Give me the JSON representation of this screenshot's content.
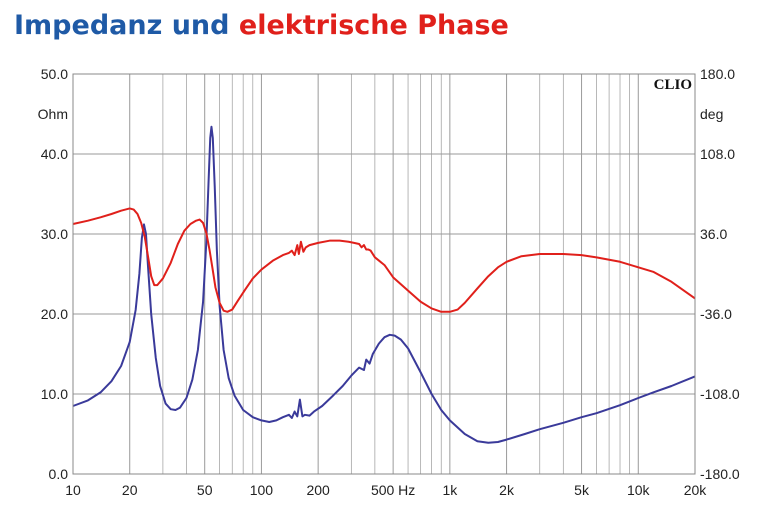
{
  "title": {
    "part1": "Impedanz und",
    "part2": "elektrische Phase"
  },
  "colors": {
    "title_blue": "#1f5aa6",
    "title_red": "#e0201b",
    "impedance": "#3a3a9a",
    "phase": "#e0201b",
    "grid": "#9a9a9a",
    "plot_border": "#888888"
  },
  "chart_data": {
    "type": "line",
    "brand": "CLIO",
    "x_scale": "log",
    "xlim": [
      10,
      20000
    ],
    "x_ticks": [
      {
        "value": 10,
        "label": "10"
      },
      {
        "value": 20,
        "label": "20"
      },
      {
        "value": 50,
        "label": "50"
      },
      {
        "value": 100,
        "label": "100"
      },
      {
        "value": 200,
        "label": "200"
      },
      {
        "value": 500,
        "label": "500 Hz"
      },
      {
        "value": 1000,
        "label": "1k"
      },
      {
        "value": 2000,
        "label": "2k"
      },
      {
        "value": 5000,
        "label": "5k"
      },
      {
        "value": 10000,
        "label": "10k"
      },
      {
        "value": 20000,
        "label": "20k"
      }
    ],
    "y_left": {
      "unit": "Ohm",
      "lim": [
        0,
        50
      ],
      "ticks": [
        {
          "value": 50,
          "label": "50.0"
        },
        {
          "value": 40,
          "label": "40.0"
        },
        {
          "value": 30,
          "label": "30.0"
        },
        {
          "value": 20,
          "label": "20.0"
        },
        {
          "value": 10,
          "label": "10.0"
        },
        {
          "value": 0,
          "label": "0.0"
        }
      ]
    },
    "y_right": {
      "unit": "deg",
      "lim": [
        -180,
        180
      ],
      "ticks": [
        {
          "value": 180,
          "label": "180.0"
        },
        {
          "value": 108,
          "label": "108.0"
        },
        {
          "value": 36,
          "label": "36.0"
        },
        {
          "value": -36,
          "label": "-36.0"
        },
        {
          "value": -108,
          "label": "-108.0"
        },
        {
          "value": -180,
          "label": "-180.0"
        }
      ]
    },
    "grid": true,
    "series": [
      {
        "axis": "left",
        "color": "#3a3a9a",
        "points": [
          [
            10,
            8.5
          ],
          [
            12,
            9.2
          ],
          [
            14,
            10.2
          ],
          [
            16,
            11.6
          ],
          [
            18,
            13.5
          ],
          [
            20,
            16.5
          ],
          [
            21.5,
            20.5
          ],
          [
            22.5,
            25
          ],
          [
            23.2,
            29.5
          ],
          [
            23.8,
            31.2
          ],
          [
            24.4,
            30
          ],
          [
            25,
            26
          ],
          [
            26,
            20
          ],
          [
            27.5,
            14.5
          ],
          [
            29,
            11
          ],
          [
            31,
            8.8
          ],
          [
            33,
            8.1
          ],
          [
            35,
            8.0
          ],
          [
            37,
            8.3
          ],
          [
            40,
            9.5
          ],
          [
            43,
            11.8
          ],
          [
            46,
            15.5
          ],
          [
            49,
            21.5
          ],
          [
            51,
            29
          ],
          [
            52.5,
            37
          ],
          [
            53.5,
            42
          ],
          [
            54.3,
            43.4
          ],
          [
            55.2,
            42
          ],
          [
            56.5,
            36
          ],
          [
            58,
            28
          ],
          [
            60,
            21
          ],
          [
            63,
            15.5
          ],
          [
            67,
            12
          ],
          [
            72,
            9.8
          ],
          [
            80,
            8.0
          ],
          [
            90,
            7.1
          ],
          [
            100,
            6.7
          ],
          [
            110,
            6.5
          ],
          [
            120,
            6.7
          ],
          [
            130,
            7.1
          ],
          [
            140,
            7.4
          ],
          [
            145,
            7.0
          ],
          [
            150,
            7.8
          ],
          [
            155,
            7.2
          ],
          [
            160,
            9.3
          ],
          [
            165,
            7.2
          ],
          [
            170,
            7.4
          ],
          [
            180,
            7.3
          ],
          [
            190,
            7.8
          ],
          [
            210,
            8.5
          ],
          [
            240,
            9.8
          ],
          [
            270,
            11.0
          ],
          [
            300,
            12.3
          ],
          [
            330,
            13.3
          ],
          [
            350,
            13.0
          ],
          [
            360,
            14.3
          ],
          [
            375,
            13.8
          ],
          [
            390,
            15.0
          ],
          [
            420,
            16.3
          ],
          [
            450,
            17.1
          ],
          [
            480,
            17.4
          ],
          [
            510,
            17.3
          ],
          [
            550,
            16.8
          ],
          [
            600,
            15.7
          ],
          [
            700,
            12.7
          ],
          [
            800,
            10.0
          ],
          [
            900,
            8.0
          ],
          [
            1000,
            6.7
          ],
          [
            1200,
            5.0
          ],
          [
            1400,
            4.1
          ],
          [
            1600,
            3.9
          ],
          [
            1800,
            4.0
          ],
          [
            2000,
            4.3
          ],
          [
            2500,
            5.0
          ],
          [
            3000,
            5.6
          ],
          [
            4000,
            6.4
          ],
          [
            5000,
            7.1
          ],
          [
            6000,
            7.6
          ],
          [
            8000,
            8.6
          ],
          [
            10000,
            9.5
          ],
          [
            12000,
            10.2
          ],
          [
            15000,
            11.0
          ],
          [
            20000,
            12.2
          ]
        ]
      },
      {
        "axis": "right",
        "color": "#e0201b",
        "points": [
          [
            10,
            45
          ],
          [
            12,
            48
          ],
          [
            14,
            51
          ],
          [
            16,
            54
          ],
          [
            18,
            57
          ],
          [
            20,
            59
          ],
          [
            21,
            58
          ],
          [
            22,
            54
          ],
          [
            23,
            46
          ],
          [
            24,
            34
          ],
          [
            25,
            16
          ],
          [
            26,
            -2
          ],
          [
            27,
            -10
          ],
          [
            28,
            -10
          ],
          [
            30,
            -4
          ],
          [
            33,
            10
          ],
          [
            36,
            27
          ],
          [
            39,
            39
          ],
          [
            42,
            45
          ],
          [
            45,
            48
          ],
          [
            47,
            49
          ],
          [
            49,
            46
          ],
          [
            51,
            37
          ],
          [
            53,
            22
          ],
          [
            55,
            5
          ],
          [
            57,
            -12
          ],
          [
            60,
            -26
          ],
          [
            63,
            -33
          ],
          [
            66,
            -34
          ],
          [
            70,
            -32
          ],
          [
            75,
            -24
          ],
          [
            82,
            -14
          ],
          [
            90,
            -4
          ],
          [
            100,
            4
          ],
          [
            115,
            12
          ],
          [
            130,
            17
          ],
          [
            140,
            19
          ],
          [
            145,
            21
          ],
          [
            150,
            17
          ],
          [
            155,
            26
          ],
          [
            158,
            18
          ],
          [
            162,
            29
          ],
          [
            167,
            20
          ],
          [
            172,
            24
          ],
          [
            180,
            26
          ],
          [
            200,
            28
          ],
          [
            230,
            30
          ],
          [
            260,
            30
          ],
          [
            290,
            29
          ],
          [
            310,
            28
          ],
          [
            330,
            27
          ],
          [
            340,
            24
          ],
          [
            350,
            26
          ],
          [
            360,
            22
          ],
          [
            370,
            22
          ],
          [
            380,
            21
          ],
          [
            400,
            15
          ],
          [
            450,
            8
          ],
          [
            500,
            -3
          ],
          [
            600,
            -15
          ],
          [
            700,
            -25
          ],
          [
            800,
            -31
          ],
          [
            900,
            -34
          ],
          [
            1000,
            -34
          ],
          [
            1100,
            -32
          ],
          [
            1200,
            -26
          ],
          [
            1400,
            -13
          ],
          [
            1600,
            -2
          ],
          [
            1800,
            6
          ],
          [
            2000,
            11
          ],
          [
            2400,
            16
          ],
          [
            3000,
            18
          ],
          [
            4000,
            18
          ],
          [
            5000,
            17
          ],
          [
            6000,
            15
          ],
          [
            8000,
            11
          ],
          [
            10000,
            6
          ],
          [
            12000,
            2
          ],
          [
            15000,
            -7
          ],
          [
            20000,
            -22
          ]
        ]
      }
    ]
  }
}
